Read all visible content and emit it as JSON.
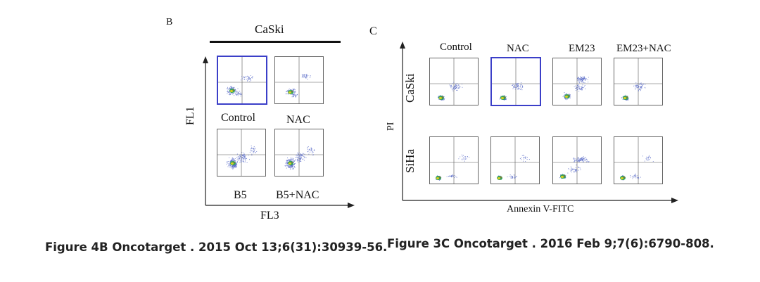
{
  "panelB": {
    "letter": "B",
    "group_header": "CaSki",
    "y_axis": "FL1",
    "x_axis": "FL3",
    "labels": [
      "Control",
      "NAC",
      "B5",
      "B5+NAC"
    ],
    "caption": "Figure 4B Oncotarget . 2015 Oct 13;6(31):30939-56."
  },
  "panelC": {
    "letter": "C",
    "columns": [
      "Control",
      "NAC",
      "EM23",
      "EM23+NAC"
    ],
    "rows": [
      "CaSki",
      "SiHa"
    ],
    "y_axis": "PI",
    "x_axis": "Annexin V-FITC",
    "caption": "Figure 3C Oncotarget . 2016 Feb 9;7(6):6790-808."
  },
  "colors": {
    "highlight": "#3b3fc8",
    "dots": "#5a6cc8",
    "core_green": "#2ea84a",
    "core_yellow": "#e8d21c"
  }
}
